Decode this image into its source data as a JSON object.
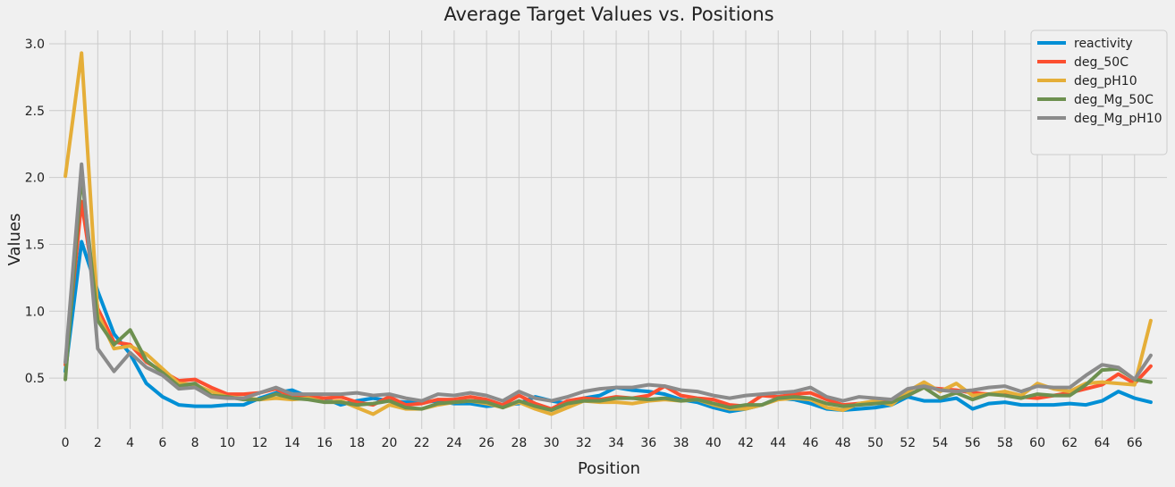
{
  "chart_data": {
    "type": "line",
    "title": "Average Target Values vs. Positions",
    "xlabel": "Position",
    "ylabel": "Values",
    "xlim": [
      -1,
      68
    ],
    "ylim": [
      0.12,
      3.1
    ],
    "xticks": [
      0,
      2,
      4,
      6,
      8,
      10,
      12,
      14,
      16,
      18,
      20,
      22,
      24,
      26,
      28,
      30,
      32,
      34,
      36,
      38,
      40,
      42,
      44,
      46,
      48,
      50,
      52,
      54,
      56,
      58,
      60,
      62,
      64,
      66
    ],
    "yticks": [
      0.5,
      1.0,
      1.5,
      2.0,
      2.5,
      3.0
    ],
    "ytick_labels": [
      "0.5",
      "1.0",
      "1.5",
      "2.0",
      "2.5",
      "3.0"
    ],
    "grid": true,
    "legend_position": "top-right",
    "x": [
      0,
      1,
      2,
      3,
      4,
      5,
      6,
      7,
      8,
      9,
      10,
      11,
      12,
      13,
      14,
      15,
      16,
      17,
      18,
      19,
      20,
      21,
      22,
      23,
      24,
      25,
      26,
      27,
      28,
      29,
      30,
      31,
      32,
      33,
      34,
      35,
      36,
      37,
      38,
      39,
      40,
      41,
      42,
      43,
      44,
      45,
      46,
      47,
      48,
      49,
      50,
      51,
      52,
      53,
      54,
      55,
      56,
      57,
      58,
      59,
      60,
      61,
      62,
      63,
      64,
      65,
      66,
      67
    ],
    "series": [
      {
        "name": "reactivity",
        "color": "#008fd5",
        "values": [
          0.55,
          1.52,
          1.15,
          0.83,
          0.68,
          0.46,
          0.36,
          0.3,
          0.29,
          0.29,
          0.3,
          0.3,
          0.35,
          0.39,
          0.41,
          0.36,
          0.35,
          0.3,
          0.33,
          0.35,
          0.33,
          0.32,
          0.32,
          0.33,
          0.31,
          0.31,
          0.29,
          0.3,
          0.31,
          0.36,
          0.33,
          0.31,
          0.35,
          0.37,
          0.43,
          0.41,
          0.4,
          0.38,
          0.34,
          0.32,
          0.28,
          0.25,
          0.27,
          0.3,
          0.35,
          0.34,
          0.31,
          0.27,
          0.26,
          0.27,
          0.28,
          0.3,
          0.36,
          0.33,
          0.33,
          0.35,
          0.27,
          0.31,
          0.32,
          0.3,
          0.3,
          0.3,
          0.31,
          0.3,
          0.33,
          0.4,
          0.35,
          0.32
        ]
      },
      {
        "name": "deg_50C",
        "color": "#fc4f30",
        "values": [
          0.6,
          1.82,
          1.02,
          0.77,
          0.75,
          0.62,
          0.55,
          0.48,
          0.49,
          0.43,
          0.38,
          0.38,
          0.39,
          0.42,
          0.36,
          0.36,
          0.35,
          0.36,
          0.32,
          0.3,
          0.36,
          0.3,
          0.31,
          0.34,
          0.34,
          0.36,
          0.34,
          0.3,
          0.37,
          0.31,
          0.27,
          0.33,
          0.35,
          0.34,
          0.36,
          0.35,
          0.37,
          0.44,
          0.37,
          0.35,
          0.34,
          0.3,
          0.29,
          0.37,
          0.36,
          0.38,
          0.39,
          0.34,
          0.3,
          0.31,
          0.32,
          0.34,
          0.37,
          0.43,
          0.42,
          0.41,
          0.39,
          0.38,
          0.38,
          0.36,
          0.35,
          0.37,
          0.39,
          0.42,
          0.45,
          0.53,
          0.46,
          0.59
        ]
      },
      {
        "name": "deg_pH10",
        "color": "#e5ae38",
        "values": [
          2.01,
          2.93,
          0.98,
          0.72,
          0.74,
          0.68,
          0.57,
          0.46,
          0.45,
          0.4,
          0.36,
          0.35,
          0.34,
          0.35,
          0.34,
          0.35,
          0.32,
          0.33,
          0.28,
          0.23,
          0.3,
          0.27,
          0.27,
          0.3,
          0.32,
          0.33,
          0.31,
          0.28,
          0.32,
          0.27,
          0.23,
          0.28,
          0.33,
          0.32,
          0.32,
          0.31,
          0.33,
          0.34,
          0.33,
          0.34,
          0.3,
          0.27,
          0.27,
          0.3,
          0.34,
          0.35,
          0.34,
          0.28,
          0.26,
          0.31,
          0.33,
          0.3,
          0.4,
          0.47,
          0.4,
          0.46,
          0.37,
          0.38,
          0.4,
          0.37,
          0.46,
          0.42,
          0.4,
          0.46,
          0.47,
          0.46,
          0.45,
          0.93
        ]
      },
      {
        "name": "deg_Mg_50C",
        "color": "#6d904f",
        "values": [
          0.49,
          2.02,
          0.93,
          0.75,
          0.86,
          0.63,
          0.54,
          0.44,
          0.46,
          0.37,
          0.36,
          0.34,
          0.34,
          0.38,
          0.35,
          0.34,
          0.32,
          0.32,
          0.3,
          0.31,
          0.33,
          0.28,
          0.27,
          0.31,
          0.32,
          0.33,
          0.32,
          0.28,
          0.33,
          0.29,
          0.26,
          0.31,
          0.33,
          0.33,
          0.35,
          0.35,
          0.34,
          0.35,
          0.33,
          0.34,
          0.31,
          0.28,
          0.3,
          0.3,
          0.35,
          0.36,
          0.35,
          0.31,
          0.29,
          0.3,
          0.31,
          0.32,
          0.37,
          0.43,
          0.35,
          0.39,
          0.34,
          0.38,
          0.37,
          0.35,
          0.38,
          0.37,
          0.37,
          0.45,
          0.56,
          0.57,
          0.49,
          0.47
        ]
      },
      {
        "name": "deg_Mg_pH10",
        "color": "#8b8b8b",
        "values": [
          0.62,
          2.1,
          0.72,
          0.55,
          0.69,
          0.58,
          0.52,
          0.42,
          0.43,
          0.36,
          0.35,
          0.35,
          0.39,
          0.43,
          0.38,
          0.38,
          0.38,
          0.38,
          0.39,
          0.37,
          0.38,
          0.35,
          0.33,
          0.38,
          0.37,
          0.39,
          0.37,
          0.33,
          0.4,
          0.35,
          0.33,
          0.36,
          0.4,
          0.42,
          0.43,
          0.43,
          0.45,
          0.44,
          0.41,
          0.4,
          0.37,
          0.35,
          0.37,
          0.38,
          0.39,
          0.4,
          0.43,
          0.36,
          0.33,
          0.36,
          0.35,
          0.34,
          0.42,
          0.44,
          0.41,
          0.4,
          0.41,
          0.43,
          0.44,
          0.4,
          0.44,
          0.43,
          0.43,
          0.52,
          0.6,
          0.58,
          0.49,
          0.67
        ]
      }
    ]
  }
}
